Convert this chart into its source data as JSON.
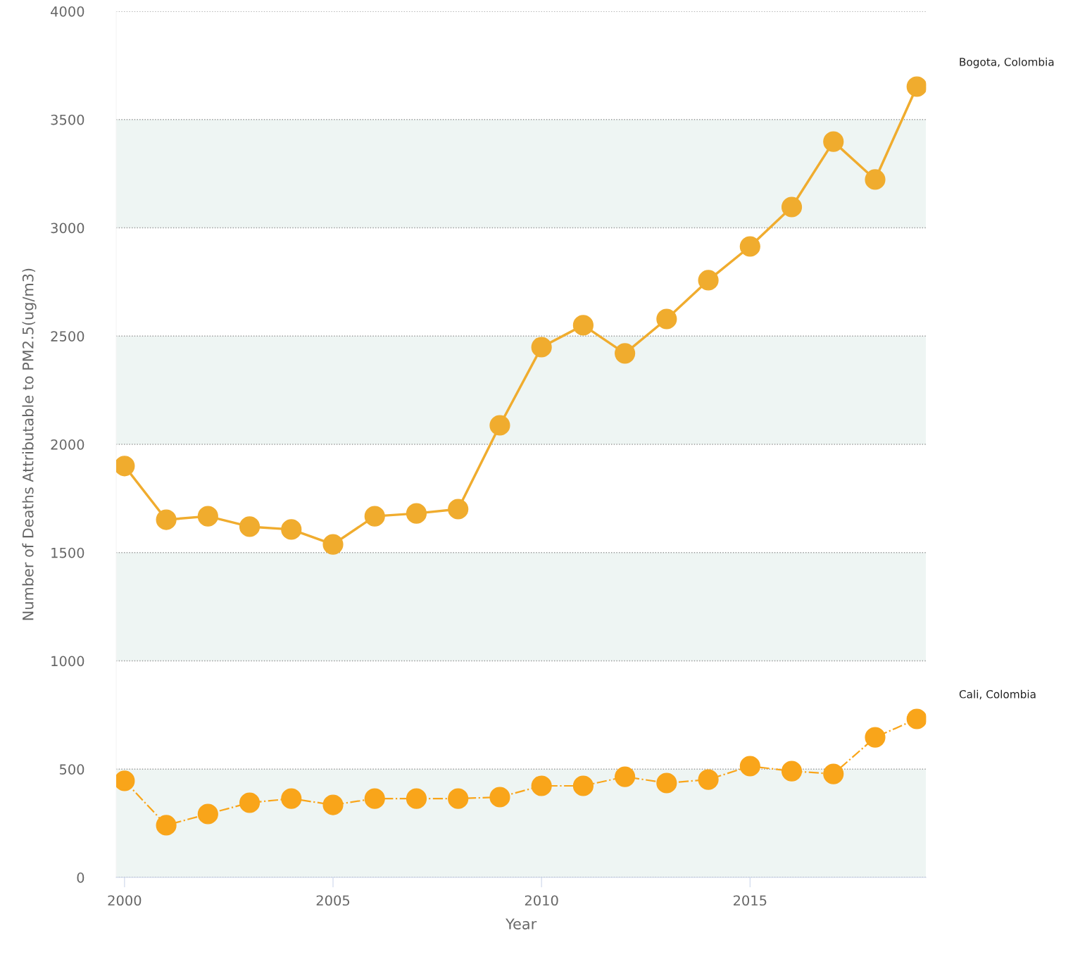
{
  "chart_data": {
    "type": "line",
    "xlabel": "Year",
    "ylabel": "Number of Deaths Attributable to PM2.5(ug/m3)",
    "x": [
      2000,
      2001,
      2002,
      2003,
      2004,
      2005,
      2006,
      2007,
      2008,
      2009,
      2010,
      2011,
      2012,
      2013,
      2014,
      2015,
      2016,
      2017,
      2018,
      2019
    ],
    "series": [
      {
        "name": "Bogota, Colombia",
        "color": "#f0ac2e",
        "line_style": "solid",
        "values": [
          1900,
          1652,
          1668,
          1620,
          1607,
          1538,
          1668,
          1681,
          1701,
          2088,
          2449,
          2550,
          2420,
          2579,
          2758,
          2914,
          3096,
          3398,
          3223,
          3652
        ]
      },
      {
        "name": "Cali, Colombia",
        "color": "#f9a51a",
        "line_style": "dashdot",
        "values": [
          446,
          241,
          293,
          345,
          364,
          335,
          364,
          364,
          364,
          371,
          423,
          423,
          465,
          436,
          452,
          514,
          491,
          478,
          647,
          732
        ]
      }
    ],
    "marker": "circle",
    "xlim": [
      1999.8,
      2019.22
    ],
    "xticks": [
      2000,
      2005,
      2010,
      2015
    ],
    "ylim": [
      0,
      4000
    ],
    "yticks": [
      0,
      500,
      1000,
      1500,
      2000,
      2500,
      3000,
      3500,
      4000
    ],
    "grid": "y",
    "legend": false,
    "bands": [
      {
        "axis": "y",
        "from": 0,
        "to": 500,
        "color": "#eef5f3"
      },
      {
        "axis": "y",
        "from": 1000,
        "to": 1500,
        "color": "#eef5f3"
      },
      {
        "axis": "y",
        "from": 2000,
        "to": 2500,
        "color": "#eef5f3"
      },
      {
        "axis": "y",
        "from": 3000,
        "to": 3500,
        "color": "#eef5f3"
      }
    ]
  }
}
